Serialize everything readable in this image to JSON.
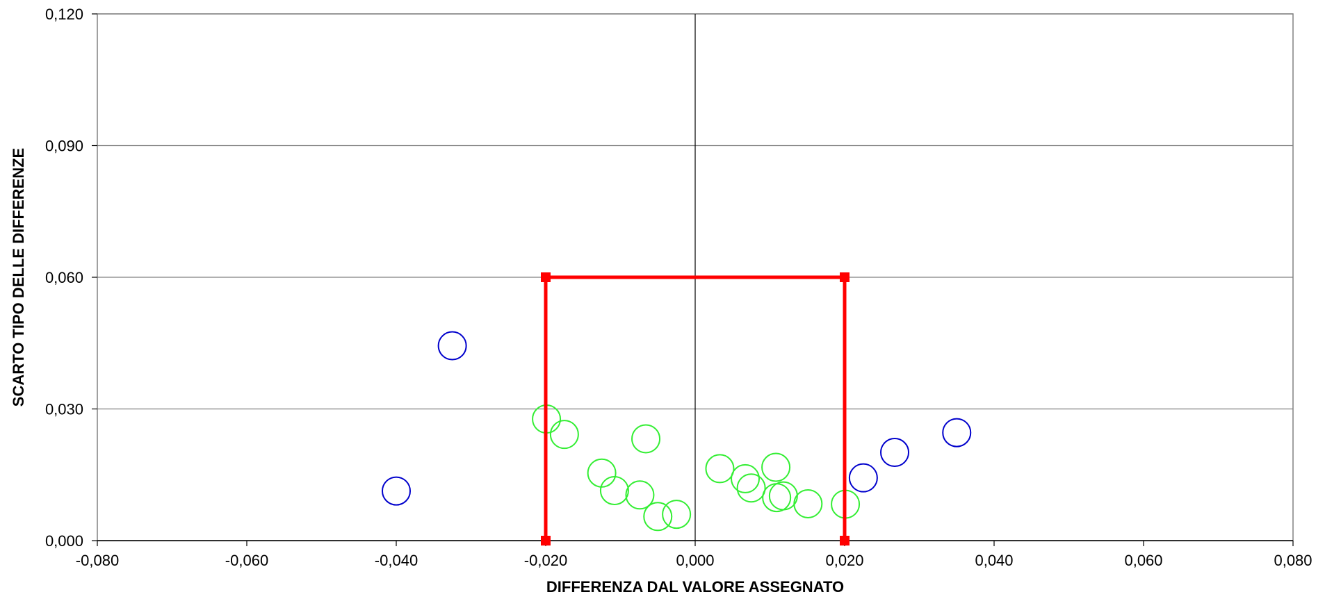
{
  "chart_data": {
    "type": "scatter",
    "title": "",
    "xlabel": "DIFFERENZA DAL VALORE ASSEGNATO",
    "ylabel": "SCARTO TIPO DELLE DIFFERENZE",
    "xlim": [
      -0.08,
      0.08
    ],
    "ylim": [
      0,
      0.12
    ],
    "x_ticks": [
      -0.08,
      -0.06,
      -0.04,
      -0.02,
      0.0,
      0.02,
      0.04,
      0.06,
      0.08
    ],
    "y_ticks": [
      0.0,
      0.03,
      0.06,
      0.09,
      0.12
    ],
    "x_tick_labels": [
      "-0,080",
      "-0,060",
      "-0,040",
      "-0,020",
      "0,000",
      "0,020",
      "0,040",
      "0,060",
      "0,080"
    ],
    "y_tick_labels": [
      "0,000",
      "0,030",
      "0,060",
      "0,090",
      "0,120"
    ],
    "grid": "horizontal",
    "legend": "none",
    "series": [
      {
        "color": "#0000cc",
        "marker": "open-circle",
        "points": [
          [
            -0.0325,
            0.0444
          ],
          [
            -0.04,
            0.0113
          ],
          [
            0.0225,
            0.0143
          ],
          [
            0.0267,
            0.0201
          ],
          [
            0.035,
            0.0246
          ]
        ]
      },
      {
        "color": "#33ee33",
        "marker": "open-circle",
        "points": [
          [
            -0.0199,
            0.0277
          ],
          [
            -0.0175,
            0.0242
          ],
          [
            -0.0066,
            0.0232
          ],
          [
            -0.0125,
            0.0154
          ],
          [
            -0.0108,
            0.0114
          ],
          [
            -0.0074,
            0.0104
          ],
          [
            -0.005,
            0.0055
          ],
          [
            -0.0025,
            0.006
          ],
          [
            0.0033,
            0.0164
          ],
          [
            0.0067,
            0.0141
          ],
          [
            0.0075,
            0.012
          ],
          [
            0.0108,
            0.0167
          ],
          [
            0.0109,
            0.0098
          ],
          [
            0.0118,
            0.0102
          ],
          [
            0.0151,
            0.0084
          ],
          [
            0.0201,
            0.0083
          ]
        ]
      },
      {
        "color": "#ff0000",
        "marker": "square-line",
        "points": [
          [
            -0.02,
            0.0
          ],
          [
            -0.02,
            0.06
          ],
          [
            0.02,
            0.06
          ],
          [
            0.02,
            0.0
          ]
        ]
      }
    ]
  }
}
